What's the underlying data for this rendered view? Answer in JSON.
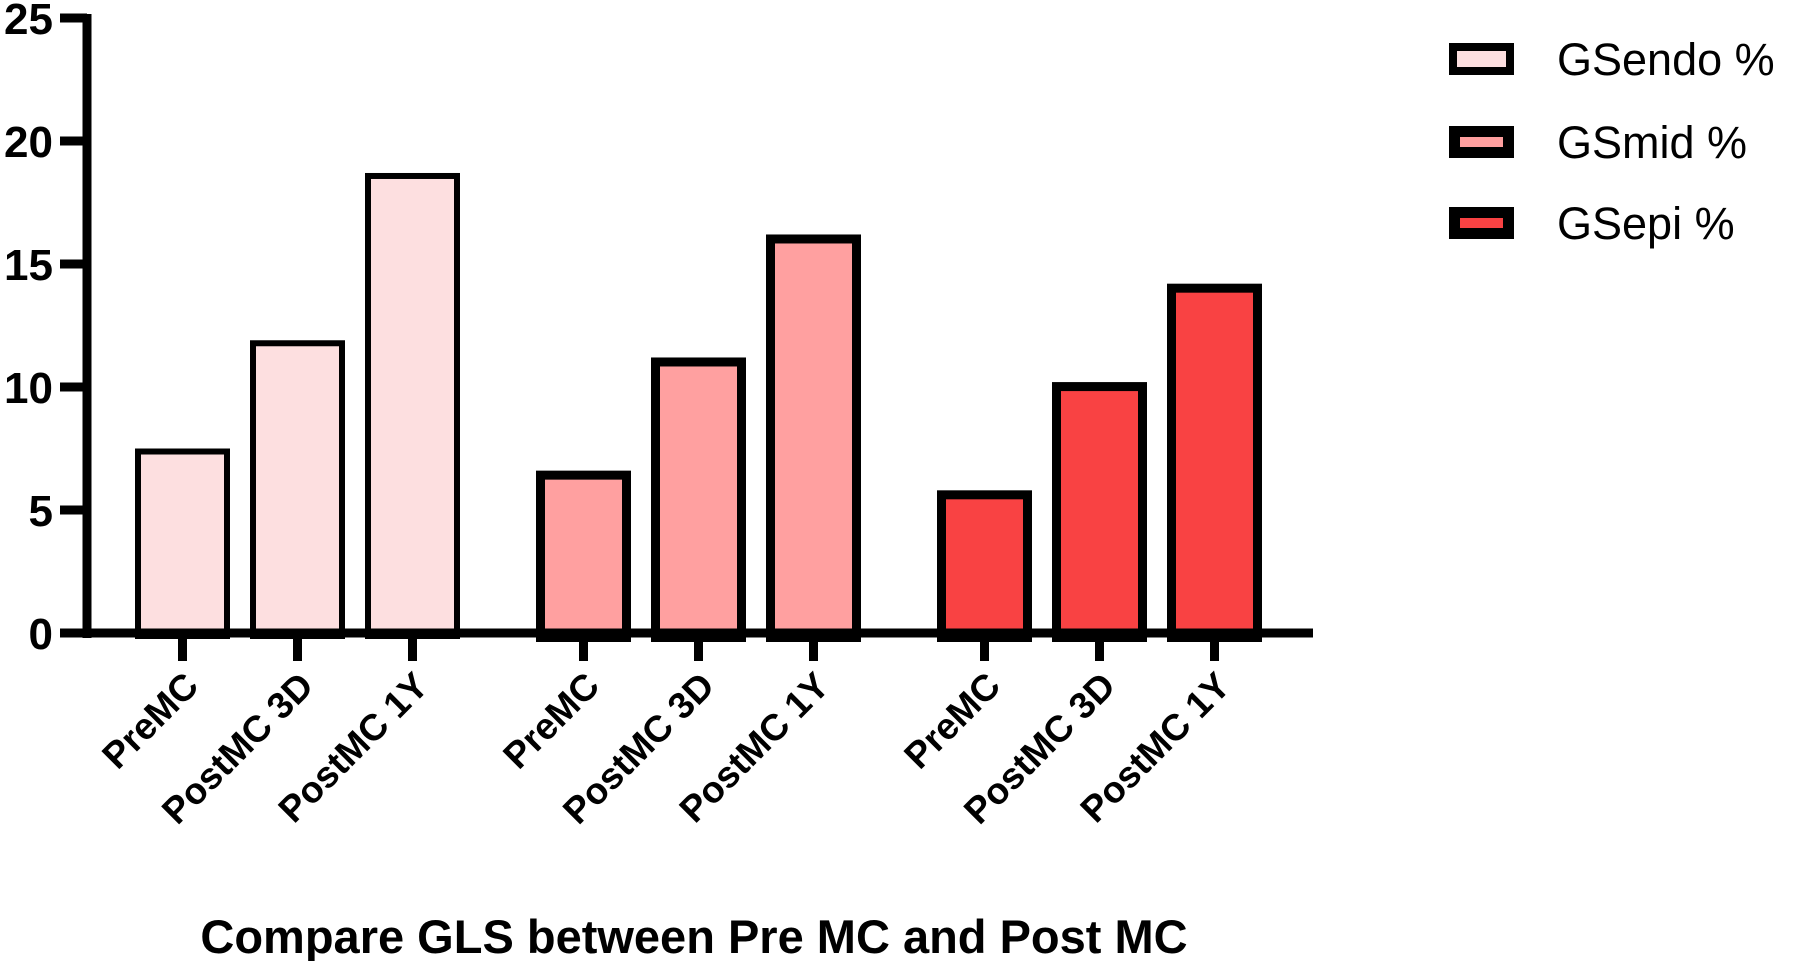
{
  "chart_data": {
    "type": "bar",
    "title": "Compare GLS between Pre MC and Post MC",
    "xlabel": "Compare GLS between Pre MC and Post MC",
    "ylabel": "",
    "ylim": [
      0,
      25
    ],
    "yticks": [
      0,
      5,
      10,
      15,
      20,
      25
    ],
    "grid": false,
    "legend_position": "top-right",
    "categories": [
      "PreMC",
      "PostMC 3D",
      "PostMC 1Y"
    ],
    "series": [
      {
        "name": "GSendo %",
        "color": "#FDDFE0",
        "values": [
          7.5,
          11.9,
          18.7
        ]
      },
      {
        "name": "GSmid %",
        "color": "#FFA0A0",
        "values": [
          6.6,
          11.2,
          16.2
        ]
      },
      {
        "name": "GSepi %",
        "color": "#F94243",
        "values": [
          5.8,
          10.2,
          14.2
        ]
      }
    ]
  },
  "axis": {
    "y_tick_labels": [
      "0",
      "5",
      "10",
      "15",
      "20",
      "25"
    ]
  },
  "legend": {
    "items": [
      {
        "label": "GSendo %",
        "color": "#FDDFE0"
      },
      {
        "label": "GSmid %",
        "color": "#FFA0A0"
      },
      {
        "label": "GSepi %",
        "color": "#F94243"
      }
    ]
  },
  "title": "Compare GLS between Pre MC and Post MC"
}
